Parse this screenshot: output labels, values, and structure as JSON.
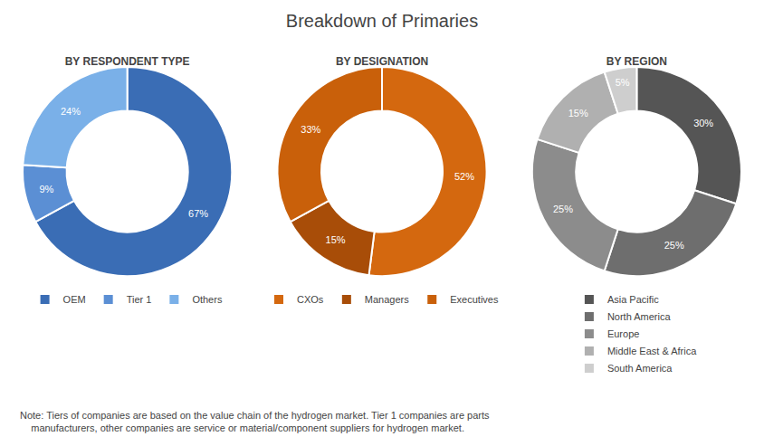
{
  "title": "Breakdown of Primaries",
  "annotations": [
    "Note: Tiers of companies are based on the value chain of the hydrogen market. Tier 1 companies are parts\n    manufacturers, other companies are service or material/component suppliers for hydrogen market."
  ],
  "chart_data": [
    {
      "type": "pie",
      "title": "BY RESPONDENT TYPE",
      "categories": [
        "OEM",
        "Tier 1",
        "Others"
      ],
      "values": [
        67,
        9,
        24
      ],
      "value_labels": [
        "67%",
        "9%",
        "24%"
      ],
      "data_labels": true,
      "colors": [
        "#3a6db5",
        "#5b8fd4",
        "#7ab0e8"
      ],
      "legend": "bottom"
    },
    {
      "type": "pie",
      "title": "BY DESIGNATION",
      "categories": [
        "CXOs",
        "Managers",
        "Executives"
      ],
      "values": [
        52,
        15,
        33
      ],
      "value_labels": [
        "52%",
        "15%",
        "33%"
      ],
      "data_labels": true,
      "colors": [
        "#d4680f",
        "#a84d08",
        "#c9600a"
      ],
      "legend": "bottom"
    },
    {
      "type": "pie",
      "title": "BY REGION",
      "categories": [
        "Asia Pacific",
        "North America",
        "Europe",
        "Middle East & Africa",
        "South America"
      ],
      "values": [
        30,
        25,
        25,
        15,
        5
      ],
      "value_labels": [
        "30%",
        "25%",
        "25%",
        "15%",
        "5%"
      ],
      "data_labels": true,
      "colors": [
        "#555555",
        "#6e6e6e",
        "#8c8c8c",
        "#b0b0b0",
        "#cecece"
      ],
      "legend": "bottom"
    }
  ]
}
